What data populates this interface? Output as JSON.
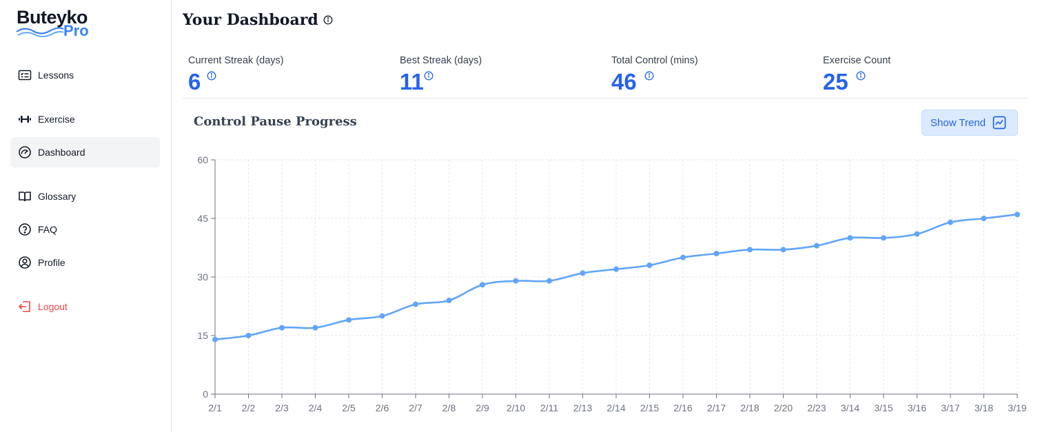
{
  "app": {
    "logo_main": "Buteyko",
    "logo_sub": "Pro",
    "accent": "#2563eb",
    "line_color": "#60a5fa"
  },
  "sidebar": {
    "items": [
      {
        "label": "Lessons",
        "icon": "lessons-icon"
      },
      {
        "label": "Exercise",
        "icon": "dumbbell-icon"
      },
      {
        "label": "Dashboard",
        "icon": "gauge-icon",
        "active": true
      },
      {
        "label": "Glossary",
        "icon": "book-icon"
      },
      {
        "label": "FAQ",
        "icon": "question-icon"
      },
      {
        "label": "Profile",
        "icon": "user-icon"
      }
    ],
    "logout_label": "Logout"
  },
  "header": {
    "title": "Your Dashboard"
  },
  "stats": [
    {
      "label": "Current Streak (days)",
      "value": "6"
    },
    {
      "label": "Best Streak (days)",
      "value": "11"
    },
    {
      "label": "Total Control (mins)",
      "value": "46"
    },
    {
      "label": "Exercise Count",
      "value": "25"
    }
  ],
  "chart_section": {
    "title": "Control Pause Progress",
    "trend_button": "Show Trend"
  },
  "chart_data": {
    "type": "line",
    "title": "Control Pause Progress",
    "xlabel": "",
    "ylabel": "",
    "categories": [
      "2/1",
      "2/2",
      "2/3",
      "2/4",
      "2/5",
      "2/6",
      "2/7",
      "2/8",
      "2/9",
      "2/10",
      "2/11",
      "2/13",
      "2/14",
      "2/15",
      "2/16",
      "2/17",
      "2/18",
      "2/20",
      "2/23",
      "3/14",
      "3/15",
      "3/16",
      "3/17",
      "3/18",
      "3/19"
    ],
    "series": [
      {
        "name": "Control Pause",
        "values": [
          14,
          15,
          17,
          17,
          19,
          20,
          23,
          24,
          28,
          29,
          29,
          31,
          32,
          33,
          35,
          36,
          37,
          37,
          38,
          40,
          40,
          41,
          44,
          45,
          46
        ]
      }
    ],
    "ylim": [
      0,
      60
    ],
    "yticks": [
      0,
      15,
      30,
      45,
      60
    ],
    "grid": true
  }
}
